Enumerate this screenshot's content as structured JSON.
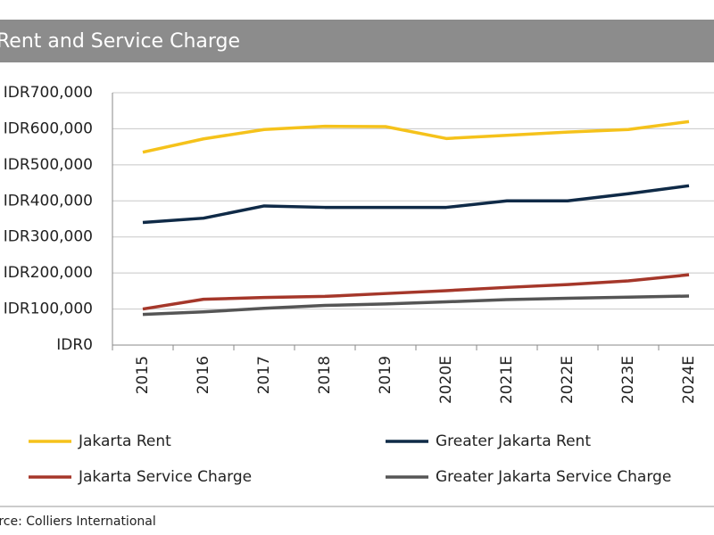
{
  "chart_data": {
    "type": "line",
    "title": "Rent and Service Charge",
    "categories": [
      "2015",
      "2016",
      "2017",
      "2018",
      "2019",
      "2020E",
      "2021E",
      "2022E",
      "2023E",
      "2024E"
    ],
    "series": [
      {
        "name": "Jakarta Rent",
        "color": "#f5c21b",
        "values": [
          535000,
          572000,
          598000,
          607000,
          606000,
          573000,
          582000,
          591000,
          598000,
          620000
        ]
      },
      {
        "name": "Greater Jakarta Rent",
        "color": "#0f2a47",
        "values": [
          340000,
          352000,
          386000,
          382000,
          382000,
          382000,
          400000,
          400000,
          420000,
          442000
        ]
      },
      {
        "name": "Jakarta Service Charge",
        "color": "#a5372a",
        "values": [
          100000,
          127000,
          132000,
          135000,
          143000,
          151000,
          160000,
          168000,
          178000,
          195000
        ]
      },
      {
        "name": "Greater Jakarta Service Charge",
        "color": "#555555",
        "values": [
          85000,
          92000,
          102000,
          110000,
          114000,
          120000,
          126000,
          130000,
          133000,
          136000
        ]
      }
    ],
    "ylim": [
      0,
      700000
    ],
    "yticks": [
      {
        "value": 0,
        "label": "IDR0"
      },
      {
        "value": 100000,
        "label": "IDR100,000"
      },
      {
        "value": 200000,
        "label": "IDR200,000"
      },
      {
        "value": 300000,
        "label": "IDR300,000"
      },
      {
        "value": 400000,
        "label": "IDR400,000"
      },
      {
        "value": 500000,
        "label": "IDR500,000"
      },
      {
        "value": 600000,
        "label": "IDR600,000"
      },
      {
        "value": 700000,
        "label": "IDR700,000"
      }
    ],
    "grid": true,
    "source": "Source: Colliers International"
  }
}
